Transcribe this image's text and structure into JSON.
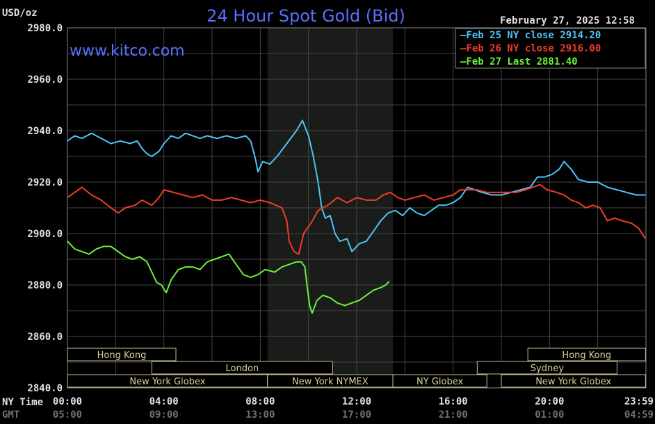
{
  "chart_data": {
    "type": "line",
    "title": "24 Hour Spot Gold (Bid)",
    "site": "www.kitco.com",
    "unit": "USD/oz",
    "datetime": "February 27, 2025 12:58",
    "y_ticks": [
      "2980.0",
      "2960.0",
      "2940.0",
      "2920.0",
      "2900.0",
      "2880.0",
      "2860.0",
      "2840.0"
    ],
    "ylim": [
      2840,
      2980
    ],
    "xlim": [
      0,
      24
    ],
    "ny_time_label": "NY Time",
    "gmt_label": "GMT",
    "x_ticks": [
      {
        "h": 0,
        "ny": "00:00",
        "gmt": "05:00"
      },
      {
        "h": 4,
        "ny": "04:00",
        "gmt": "09:00"
      },
      {
        "h": 8,
        "ny": "08:00",
        "gmt": "13:00"
      },
      {
        "h": 12,
        "ny": "12:00",
        "gmt": "17:00"
      },
      {
        "h": 16,
        "ny": "16:00",
        "gmt": "21:00"
      },
      {
        "h": 20,
        "ny": "20:00",
        "gmt": "01:00"
      },
      {
        "h": 23.983,
        "ny": "23:59",
        "gmt": "04:59"
      }
    ],
    "shaded_period": [
      8.3,
      13.5
    ],
    "grid": true,
    "legend_position": "top-right",
    "series": [
      {
        "name": "Feb 25 NY close 2914.20",
        "color": "#4fc3f7",
        "points": [
          [
            0,
            2936
          ],
          [
            0.3,
            2938
          ],
          [
            0.6,
            2937
          ],
          [
            1,
            2939
          ],
          [
            1.4,
            2937
          ],
          [
            1.8,
            2935
          ],
          [
            2.2,
            2936
          ],
          [
            2.6,
            2935
          ],
          [
            2.9,
            2936
          ],
          [
            3.1,
            2933
          ],
          [
            3.3,
            2931
          ],
          [
            3.5,
            2930
          ],
          [
            3.8,
            2932
          ],
          [
            4,
            2935
          ],
          [
            4.3,
            2938
          ],
          [
            4.6,
            2937
          ],
          [
            4.9,
            2939
          ],
          [
            5.2,
            2938
          ],
          [
            5.5,
            2937
          ],
          [
            5.8,
            2938
          ],
          [
            6.2,
            2937
          ],
          [
            6.6,
            2938
          ],
          [
            7,
            2937
          ],
          [
            7.4,
            2938
          ],
          [
            7.6,
            2936
          ],
          [
            7.8,
            2929
          ],
          [
            7.9,
            2924
          ],
          [
            8.1,
            2928
          ],
          [
            8.4,
            2927
          ],
          [
            8.7,
            2930
          ],
          [
            9.1,
            2935
          ],
          [
            9.5,
            2940
          ],
          [
            9.75,
            2944
          ],
          [
            10,
            2938
          ],
          [
            10.2,
            2930
          ],
          [
            10.4,
            2920
          ],
          [
            10.55,
            2910
          ],
          [
            10.7,
            2906
          ],
          [
            10.9,
            2907
          ],
          [
            11.1,
            2900
          ],
          [
            11.3,
            2897
          ],
          [
            11.6,
            2898
          ],
          [
            11.8,
            2893
          ],
          [
            12.1,
            2896
          ],
          [
            12.4,
            2897
          ],
          [
            12.7,
            2901
          ],
          [
            13,
            2905
          ],
          [
            13.3,
            2908
          ],
          [
            13.6,
            2909
          ],
          [
            13.9,
            2907
          ],
          [
            14.2,
            2910
          ],
          [
            14.5,
            2908
          ],
          [
            14.8,
            2907
          ],
          [
            15.1,
            2909
          ],
          [
            15.4,
            2911
          ],
          [
            15.7,
            2911
          ],
          [
            16,
            2912
          ],
          [
            16.3,
            2914
          ],
          [
            16.6,
            2918
          ],
          [
            16.9,
            2917
          ],
          [
            17.2,
            2916
          ],
          [
            17.6,
            2915
          ],
          [
            18,
            2915
          ],
          [
            18.4,
            2916
          ],
          [
            18.8,
            2917
          ],
          [
            19.2,
            2918
          ],
          [
            19.5,
            2922
          ],
          [
            19.8,
            2922
          ],
          [
            20.1,
            2923
          ],
          [
            20.4,
            2925
          ],
          [
            20.6,
            2928
          ],
          [
            20.9,
            2925
          ],
          [
            21.2,
            2921
          ],
          [
            21.6,
            2920
          ],
          [
            22,
            2920
          ],
          [
            22.4,
            2918
          ],
          [
            22.8,
            2917
          ],
          [
            23.2,
            2916
          ],
          [
            23.6,
            2915
          ],
          [
            23.98,
            2915
          ]
        ]
      },
      {
        "name": "Feb 26 NY close 2916.00",
        "color": "#f03c2a",
        "points": [
          [
            0,
            2914
          ],
          [
            0.3,
            2916
          ],
          [
            0.6,
            2918
          ],
          [
            1,
            2915
          ],
          [
            1.4,
            2913
          ],
          [
            1.8,
            2910
          ],
          [
            2.1,
            2908
          ],
          [
            2.4,
            2910
          ],
          [
            2.8,
            2911
          ],
          [
            3.1,
            2913
          ],
          [
            3.5,
            2911
          ],
          [
            3.8,
            2914
          ],
          [
            4,
            2917
          ],
          [
            4.4,
            2916
          ],
          [
            4.8,
            2915
          ],
          [
            5.2,
            2914
          ],
          [
            5.6,
            2915
          ],
          [
            6,
            2913
          ],
          [
            6.4,
            2913
          ],
          [
            6.8,
            2914
          ],
          [
            7.2,
            2913
          ],
          [
            7.6,
            2912
          ],
          [
            8,
            2913
          ],
          [
            8.4,
            2912
          ],
          [
            8.9,
            2910
          ],
          [
            9.1,
            2905
          ],
          [
            9.2,
            2897
          ],
          [
            9.4,
            2893
          ],
          [
            9.6,
            2892
          ],
          [
            9.8,
            2900
          ],
          [
            10.1,
            2904
          ],
          [
            10.4,
            2909
          ],
          [
            10.8,
            2911
          ],
          [
            11.2,
            2914
          ],
          [
            11.6,
            2912
          ],
          [
            12,
            2914
          ],
          [
            12.4,
            2913
          ],
          [
            12.8,
            2913
          ],
          [
            13.1,
            2915
          ],
          [
            13.4,
            2916
          ],
          [
            13.7,
            2914
          ],
          [
            14,
            2913
          ],
          [
            14.4,
            2914
          ],
          [
            14.8,
            2915
          ],
          [
            15.2,
            2913
          ],
          [
            15.6,
            2914
          ],
          [
            16,
            2915
          ],
          [
            16.3,
            2917
          ],
          [
            16.6,
            2917
          ],
          [
            17,
            2917
          ],
          [
            17.4,
            2916
          ],
          [
            17.8,
            2916
          ],
          [
            18.2,
            2916
          ],
          [
            18.6,
            2916
          ],
          [
            19,
            2917
          ],
          [
            19.3,
            2918
          ],
          [
            19.6,
            2919
          ],
          [
            19.9,
            2917
          ],
          [
            20.3,
            2916
          ],
          [
            20.6,
            2915
          ],
          [
            20.9,
            2913
          ],
          [
            21.2,
            2912
          ],
          [
            21.5,
            2910
          ],
          [
            21.8,
            2911
          ],
          [
            22.1,
            2910
          ],
          [
            22.4,
            2905
          ],
          [
            22.7,
            2906
          ],
          [
            23,
            2905
          ],
          [
            23.4,
            2904
          ],
          [
            23.7,
            2902
          ],
          [
            23.98,
            2898
          ]
        ]
      },
      {
        "name": "Feb 27 Last 2881.40",
        "color": "#6ef03c",
        "points": [
          [
            0,
            2897
          ],
          [
            0.3,
            2894
          ],
          [
            0.6,
            2893
          ],
          [
            0.9,
            2892
          ],
          [
            1.2,
            2894
          ],
          [
            1.5,
            2895
          ],
          [
            1.8,
            2895
          ],
          [
            2.1,
            2893
          ],
          [
            2.4,
            2891
          ],
          [
            2.7,
            2890
          ],
          [
            3,
            2891
          ],
          [
            3.3,
            2889
          ],
          [
            3.5,
            2885
          ],
          [
            3.7,
            2881
          ],
          [
            3.9,
            2880
          ],
          [
            4.1,
            2877
          ],
          [
            4.3,
            2882
          ],
          [
            4.6,
            2886
          ],
          [
            4.9,
            2887
          ],
          [
            5.2,
            2887
          ],
          [
            5.5,
            2886
          ],
          [
            5.8,
            2889
          ],
          [
            6.1,
            2890
          ],
          [
            6.4,
            2891
          ],
          [
            6.7,
            2892
          ],
          [
            7,
            2888
          ],
          [
            7.3,
            2884
          ],
          [
            7.6,
            2883
          ],
          [
            7.9,
            2884
          ],
          [
            8.2,
            2886
          ],
          [
            8.6,
            2885
          ],
          [
            8.9,
            2887
          ],
          [
            9.2,
            2888
          ],
          [
            9.5,
            2889
          ],
          [
            9.7,
            2889
          ],
          [
            9.85,
            2887
          ],
          [
            9.95,
            2879
          ],
          [
            10.05,
            2872
          ],
          [
            10.15,
            2869
          ],
          [
            10.35,
            2874
          ],
          [
            10.6,
            2876
          ],
          [
            10.9,
            2875
          ],
          [
            11.2,
            2873
          ],
          [
            11.5,
            2872
          ],
          [
            11.8,
            2873
          ],
          [
            12.1,
            2874
          ],
          [
            12.4,
            2876
          ],
          [
            12.7,
            2878
          ],
          [
            13,
            2879
          ],
          [
            13.2,
            2880
          ],
          [
            13.35,
            2881.4
          ]
        ]
      }
    ],
    "sessions": [
      {
        "label": "Hong Kong",
        "start": 0,
        "end": 4.5,
        "row": 0
      },
      {
        "label": "Hong Kong",
        "start": 19.1,
        "end": 23.983,
        "row": 0
      },
      {
        "label": "London",
        "start": 3.5,
        "end": 11,
        "row": 1
      },
      {
        "label": "Sydney",
        "start": 17,
        "end": 22.8,
        "row": 1
      },
      {
        "label": "New York Globex",
        "start": 0,
        "end": 8.3,
        "row": 2
      },
      {
        "label": "New York NYMEX",
        "start": 8.3,
        "end": 13.5,
        "row": 2
      },
      {
        "label": "NY Globex",
        "start": 13.5,
        "end": 17.4,
        "row": 2
      },
      {
        "label": "New York Globex",
        "start": 18,
        "end": 23.983,
        "row": 2
      }
    ]
  }
}
